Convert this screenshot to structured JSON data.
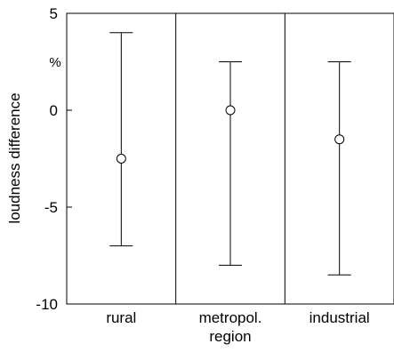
{
  "chart_data": {
    "type": "scatter",
    "title": "",
    "xlabel": "",
    "ylabel": "loudness difference",
    "yunit": "%",
    "ylim": [
      -10,
      5
    ],
    "yticks": [
      5,
      0,
      -5,
      -10
    ],
    "grid": false,
    "legend": "none",
    "categories": [
      {
        "lines": [
          "rural"
        ]
      },
      {
        "lines": [
          "metropol.",
          "region"
        ]
      },
      {
        "lines": [
          "industrial"
        ]
      }
    ],
    "series": [
      {
        "mean": [
          -2.5,
          0,
          -1.5
        ],
        "upper": [
          4,
          2.5,
          2.5
        ],
        "lower": [
          -7,
          -8,
          -8.5
        ]
      }
    ]
  }
}
